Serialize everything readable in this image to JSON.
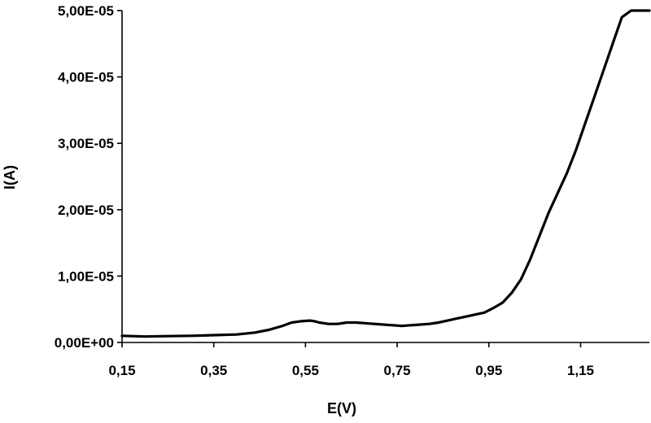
{
  "chart_data": {
    "type": "line",
    "title": "",
    "xlabel": "E(V)",
    "ylabel": "I(A)",
    "xlim": [
      0.15,
      1.3
    ],
    "ylim": [
      0,
      5e-05
    ],
    "x_ticks": [
      0.15,
      0.35,
      0.55,
      0.75,
      0.95,
      1.15
    ],
    "x_tick_labels": [
      "0,15",
      "0,35",
      "0,55",
      "0,75",
      "0,95",
      "1,15"
    ],
    "y_ticks": [
      0,
      1e-05,
      2e-05,
      3e-05,
      4e-05,
      5e-05
    ],
    "y_tick_labels": [
      "0,00E+00",
      "1,00E-05",
      "2,00E-05",
      "3,00E-05",
      "4,00E-05",
      "5,00E-05"
    ],
    "grid": false,
    "legend": "none",
    "series": [
      {
        "color": "#000000",
        "x": [
          0.15,
          0.2,
          0.25,
          0.3,
          0.35,
          0.4,
          0.44,
          0.47,
          0.5,
          0.52,
          0.54,
          0.56,
          0.57,
          0.58,
          0.6,
          0.62,
          0.64,
          0.66,
          0.68,
          0.7,
          0.72,
          0.74,
          0.76,
          0.78,
          0.8,
          0.82,
          0.84,
          0.86,
          0.88,
          0.9,
          0.92,
          0.94,
          0.96,
          0.98,
          1.0,
          1.02,
          1.04,
          1.06,
          1.08,
          1.1,
          1.12,
          1.14,
          1.16,
          1.18,
          1.2,
          1.22,
          1.24,
          1.26,
          1.28,
          1.3
        ],
        "y": [
          1e-06,
          9e-07,
          9.5e-07,
          1e-06,
          1.1e-06,
          1.2e-06,
          1.5e-06,
          1.9e-06,
          2.5e-06,
          3e-06,
          3.2e-06,
          3.3e-06,
          3.2e-06,
          3e-06,
          2.8e-06,
          2.8e-06,
          3e-06,
          3e-06,
          2.9e-06,
          2.8e-06,
          2.7e-06,
          2.6e-06,
          2.5e-06,
          2.6e-06,
          2.7e-06,
          2.8e-06,
          3e-06,
          3.3e-06,
          3.6e-06,
          3.9e-06,
          4.2e-06,
          4.5e-06,
          5.2e-06,
          6e-06,
          7.5e-06,
          9.5e-06,
          1.25e-05,
          1.6e-05,
          1.95e-05,
          2.25e-05,
          2.55e-05,
          2.9e-05,
          3.3e-05,
          3.7e-05,
          4.1e-05,
          4.5e-05,
          4.9e-05,
          5e-05,
          5e-05,
          5e-05
        ]
      }
    ]
  }
}
